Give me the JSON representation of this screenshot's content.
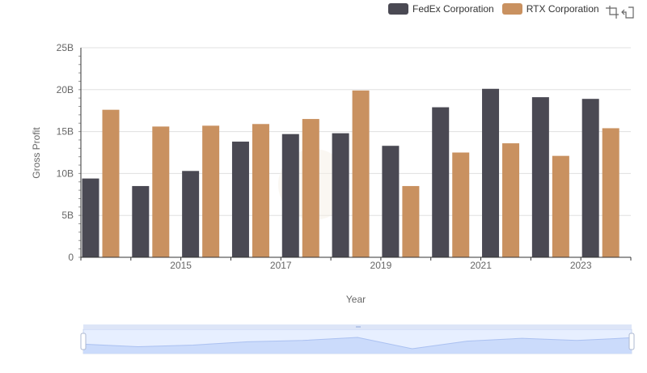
{
  "chart_data": {
    "type": "bar",
    "title": "",
    "xlabel": "Year",
    "ylabel": "Gross Profit",
    "ylim": [
      0,
      25000000000
    ],
    "y_ticks": [
      "0",
      "5B",
      "10B",
      "15B",
      "20B",
      "25B"
    ],
    "x_tick_labels": [
      "2015",
      "2017",
      "2019",
      "2021",
      "2023"
    ],
    "categories": [
      "2014",
      "2015",
      "2016",
      "2017",
      "2018",
      "2019",
      "2020",
      "2021",
      "2022",
      "2023",
      "2024"
    ],
    "series": [
      {
        "name": "FedEx Corporation",
        "color": "#4a4953",
        "values": [
          9400000000,
          8500000000,
          10300000000,
          13800000000,
          14700000000,
          14800000000,
          13300000000,
          17900000000,
          20100000000,
          19100000000,
          18900000000
        ]
      },
      {
        "name": "RTX Corporation",
        "color": "#c99160",
        "values": [
          17600000000,
          15600000000,
          15700000000,
          15900000000,
          16500000000,
          19900000000,
          8500000000,
          12500000000,
          13600000000,
          12100000000,
          15400000000
        ]
      }
    ],
    "grid": true,
    "legend": "top-right"
  },
  "toolbox": {
    "zoom_icon": "zoom-select-icon",
    "reset_icon": "zoom-reset-icon"
  },
  "data_zoom": {
    "start_percent": 0,
    "end_percent": 100
  }
}
